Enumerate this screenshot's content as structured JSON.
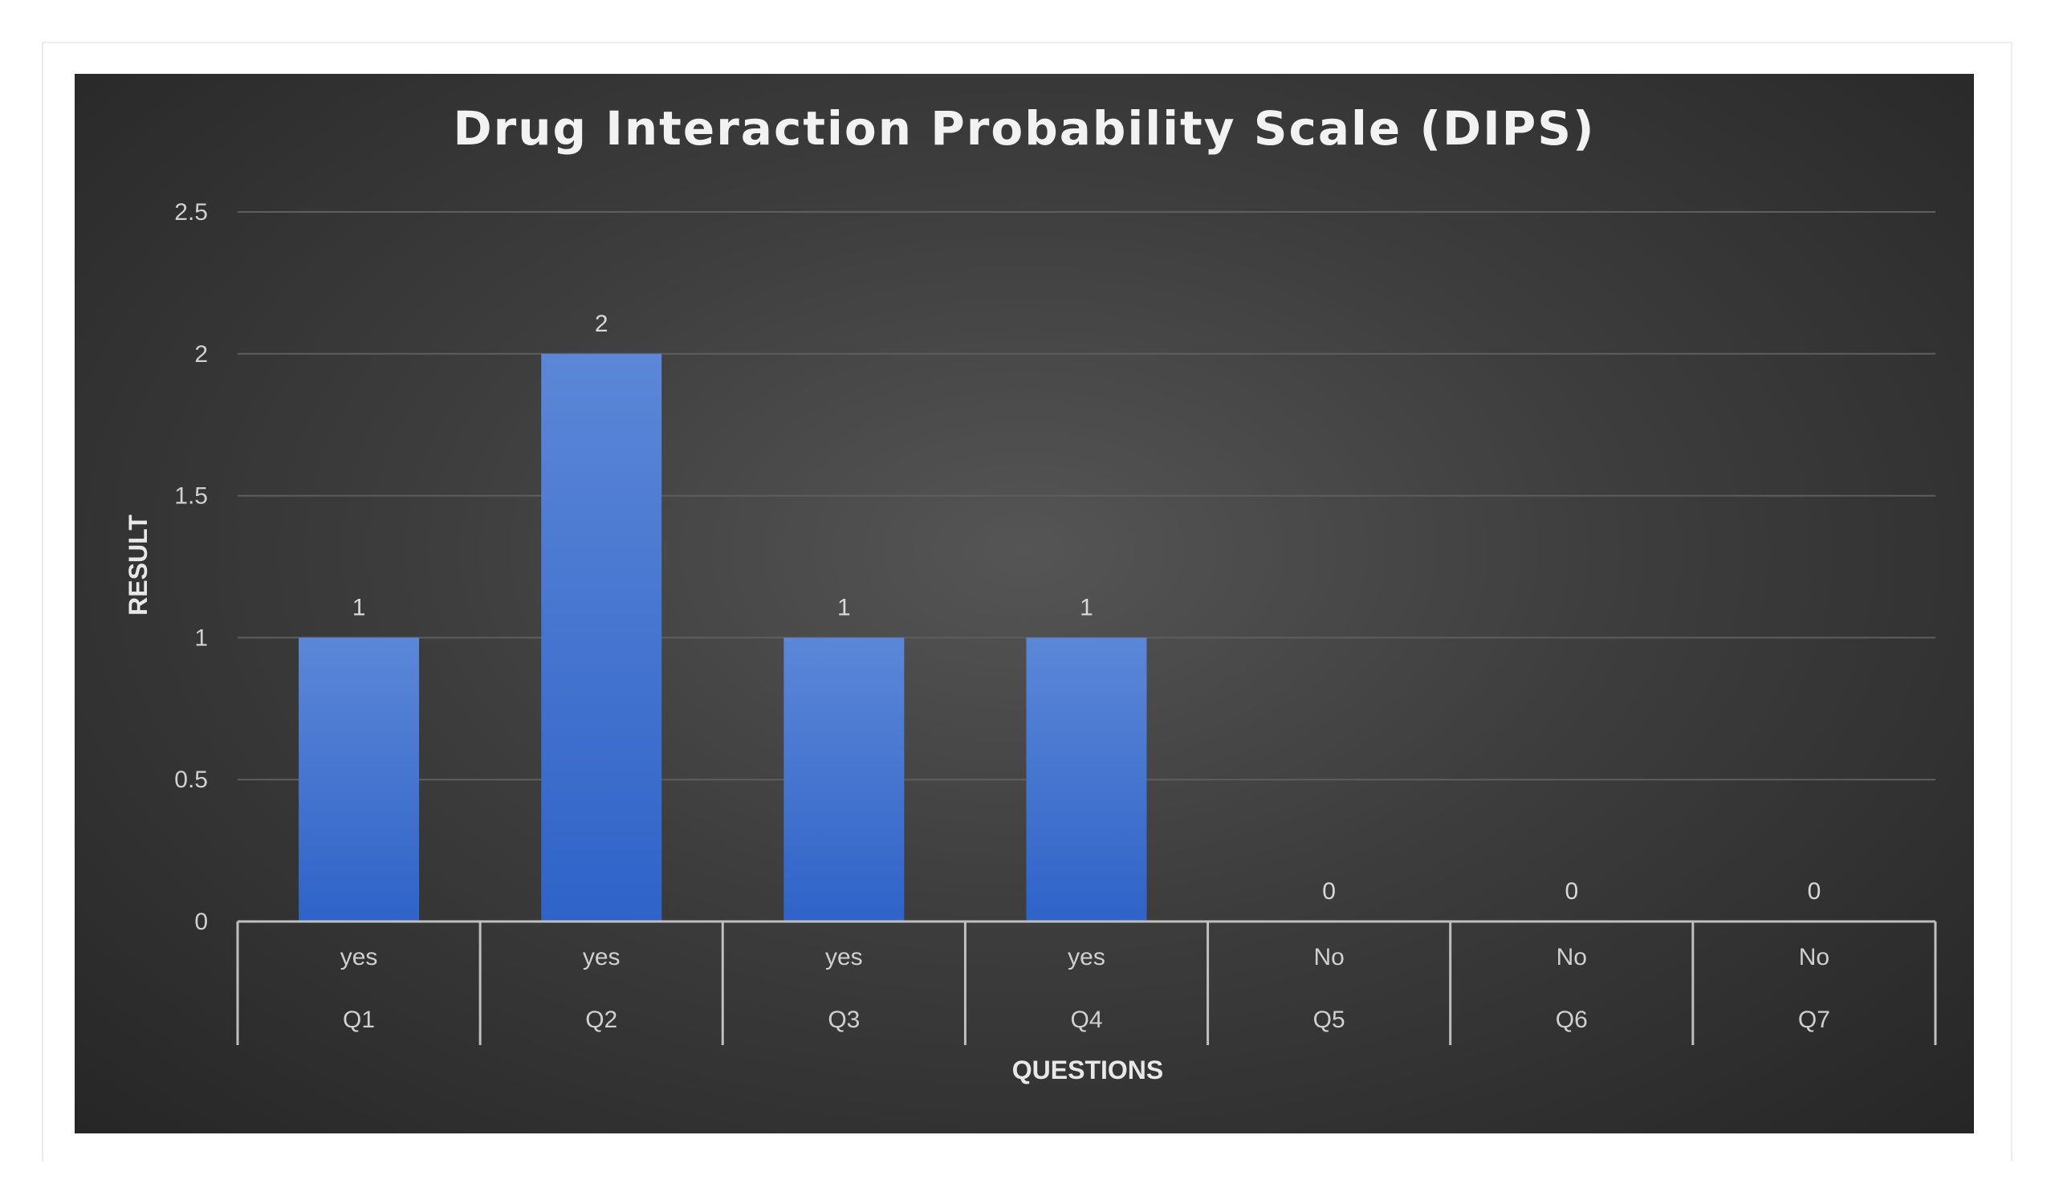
{
  "chart_data": {
    "type": "bar",
    "title": "Drug Interaction Probability Scale (DIPS)",
    "xlabel": "QUESTIONS",
    "ylabel": "RESULT",
    "ylim": [
      0,
      2.5
    ],
    "y_ticks": [
      "0",
      "0.5",
      "1",
      "1.5",
      "2",
      "2.5"
    ],
    "y_tick_values": [
      0,
      0.5,
      1,
      1.5,
      2,
      2.5
    ],
    "categories": [
      "Q1",
      "Q2",
      "Q3",
      "Q4",
      "Q5",
      "Q6",
      "Q7"
    ],
    "answers": [
      "yes",
      "yes",
      "yes",
      "yes",
      "No",
      "No",
      "No"
    ],
    "values": [
      1,
      2,
      1,
      1,
      0,
      0,
      0
    ],
    "grid": true,
    "legend": "none",
    "bar_color": "#3f72d0",
    "background_color": "#3a3a3a"
  }
}
